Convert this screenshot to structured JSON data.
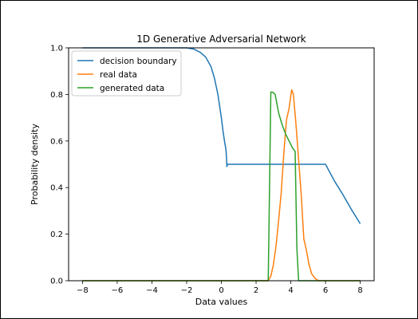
{
  "chart_data": {
    "type": "line",
    "title": "1D Generative Adversarial Network",
    "xlabel": "Data values",
    "ylabel": "Probability density",
    "xlim": [
      -8.8,
      8.8
    ],
    "ylim": [
      0,
      1.0
    ],
    "xticks": [
      -8,
      -6,
      -4,
      -2,
      0,
      2,
      4,
      6,
      8
    ],
    "xtick_labels": [
      "−8",
      "−6",
      "−4",
      "−2",
      "0",
      "2",
      "4",
      "6",
      "8"
    ],
    "yticks": [
      0.0,
      0.2,
      0.4,
      0.6,
      0.8,
      1.0
    ],
    "ytick_labels": [
      "0.0",
      "0.2",
      "0.4",
      "0.6",
      "0.8",
      "1.0"
    ],
    "grid": false,
    "legend_position": "top-left",
    "series": [
      {
        "name": "decision boundary",
        "color": "#1f77b4",
        "x": [
          -8,
          -4,
          -2,
          -1.6,
          -1.2,
          -0.9,
          -0.6,
          -0.4,
          -0.2,
          0.0,
          0.1,
          0.2,
          0.25,
          0.28,
          0.3,
          0.32,
          0.35,
          1,
          2,
          3,
          4,
          5,
          6.0,
          6.5,
          7,
          7.5,
          8
        ],
        "y": [
          1.0,
          1.0,
          1.0,
          0.995,
          0.98,
          0.96,
          0.92,
          0.87,
          0.8,
          0.7,
          0.64,
          0.59,
          0.57,
          0.55,
          0.52,
          0.49,
          0.5,
          0.5,
          0.5,
          0.5,
          0.5,
          0.5,
          0.5,
          0.43,
          0.37,
          0.305,
          0.245
        ]
      },
      {
        "name": "real data",
        "color": "#ff7f0e",
        "x": [
          -8,
          2.7,
          2.85,
          3.0,
          3.15,
          3.3,
          3.45,
          3.6,
          3.75,
          3.9,
          4.05,
          4.15,
          4.3,
          4.45,
          4.6,
          4.75,
          4.9,
          5.05,
          5.2,
          5.4,
          5.6,
          5.8,
          6.0,
          8
        ],
        "y": [
          0.0,
          0.0,
          0.02,
          0.07,
          0.15,
          0.26,
          0.38,
          0.55,
          0.69,
          0.74,
          0.82,
          0.8,
          0.67,
          0.52,
          0.37,
          0.18,
          0.13,
          0.07,
          0.03,
          0.01,
          0.0,
          0.0,
          0.0,
          0.0
        ]
      },
      {
        "name": "generated data",
        "color": "#2ca02c",
        "x": [
          -8,
          2.7,
          2.85,
          2.95,
          3.1,
          3.3,
          3.5,
          3.7,
          3.9,
          4.1,
          4.25,
          4.35,
          4.45,
          4.6,
          8
        ],
        "y": [
          0.0,
          0.0,
          0.81,
          0.81,
          0.8,
          0.72,
          0.67,
          0.63,
          0.6,
          0.57,
          0.555,
          0.14,
          0.0,
          0.0,
          0.0
        ]
      }
    ]
  }
}
